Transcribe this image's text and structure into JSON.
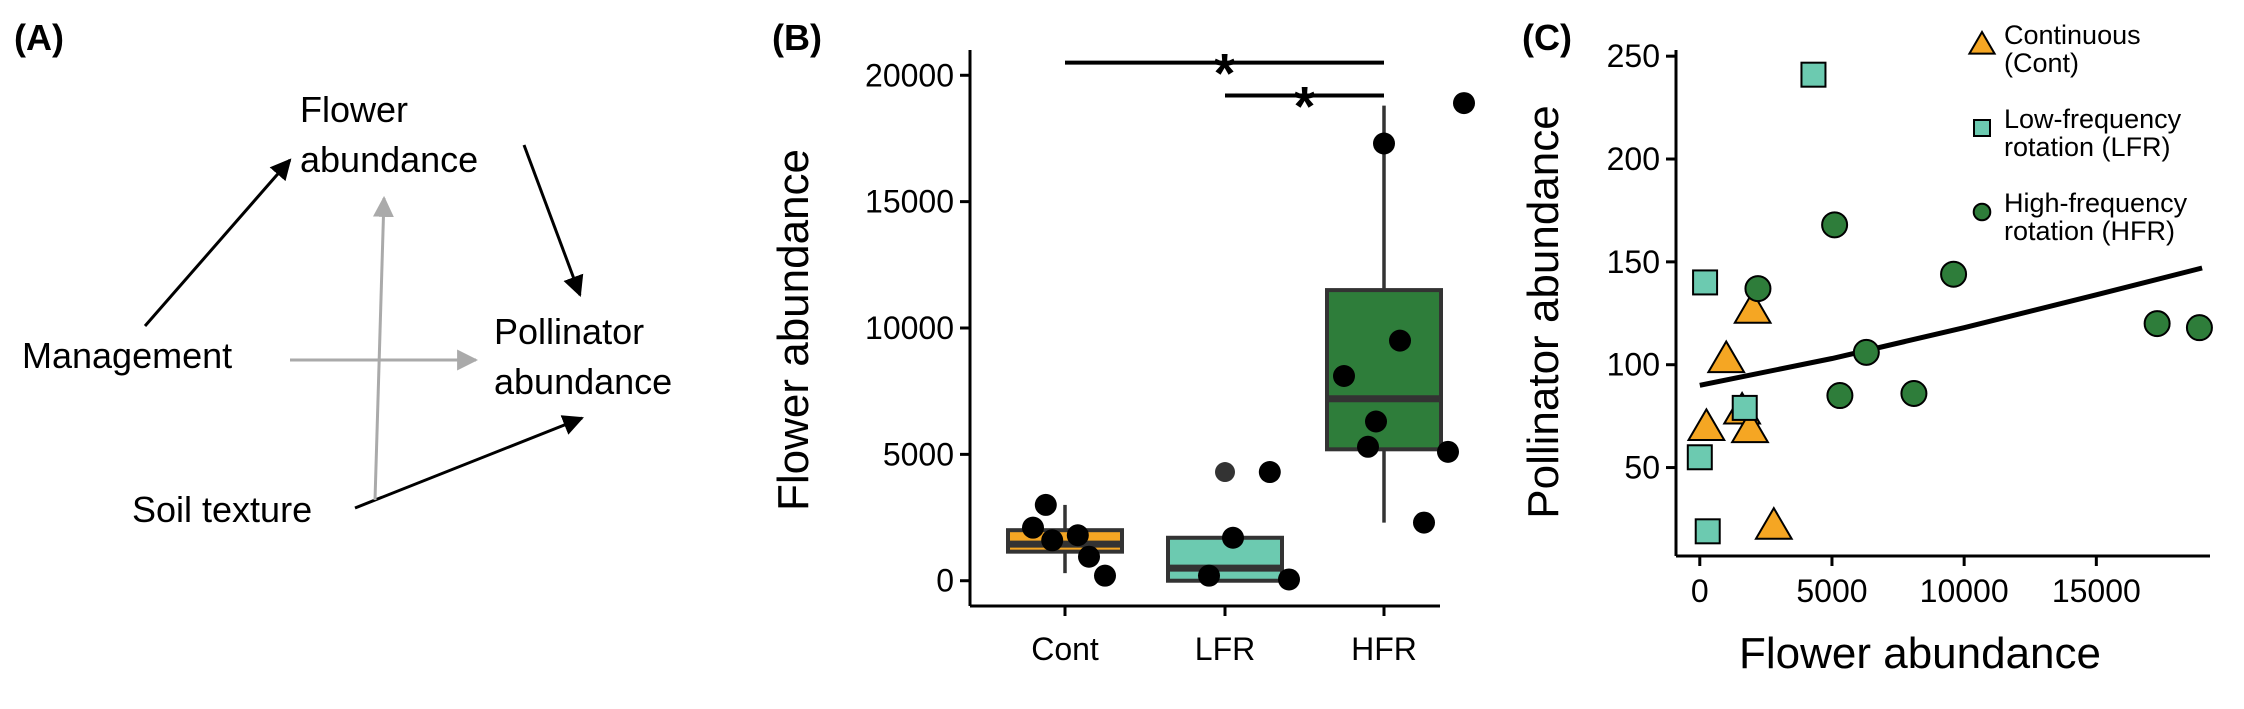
{
  "panels": {
    "a": {
      "letter": "(A)"
    },
    "b": {
      "letter": "(B)"
    },
    "c": {
      "letter": "(C)"
    }
  },
  "diagram": {
    "nodes": {
      "flower": [
        "Flower",
        "abundance"
      ],
      "management": [
        "Management"
      ],
      "pollinator": [
        "Pollinator",
        "abundance"
      ],
      "soil": [
        "Soil texture"
      ]
    },
    "edges": [
      {
        "from": "management",
        "to": "flower",
        "color": "#000000"
      },
      {
        "from": "flower",
        "to": "pollinator",
        "color": "#000000"
      },
      {
        "from": "soil",
        "to": "pollinator",
        "color": "#000000"
      },
      {
        "from": "management",
        "to": "pollinator",
        "color": "#aaaaaa"
      },
      {
        "from": "soil",
        "to": "flower",
        "color": "#aaaaaa"
      }
    ]
  },
  "chart_data": [
    {
      "type": "box",
      "ylabel": "Flower abundance",
      "ylim": [
        -1000,
        21000
      ],
      "yticks": [
        0,
        5000,
        10000,
        15000,
        20000
      ],
      "categories": [
        "Cont",
        "LFR",
        "HFR"
      ],
      "colors": [
        "#f5a623",
        "#6ccab0",
        "#2e7d3a"
      ],
      "boxes": [
        {
          "min": 300,
          "q1": 1150,
          "median": 1450,
          "q3": 2000,
          "max": 3000,
          "outliers": []
        },
        {
          "min": 0,
          "q1": 0,
          "median": 500,
          "q3": 1700,
          "max": 1700,
          "outliers": [
            4300
          ]
        },
        {
          "min": 2300,
          "q1": 5200,
          "median": 7200,
          "q3": 11500,
          "max": 18800,
          "outliers": []
        }
      ],
      "points": [
        [
          [
            -0.2,
            2100
          ],
          [
            -0.12,
            3000
          ],
          [
            -0.08,
            1600
          ],
          [
            0.08,
            1800
          ],
          [
            0.15,
            950
          ],
          [
            0.25,
            200
          ]
        ],
        [
          [
            -0.1,
            200
          ],
          [
            0.05,
            1700
          ],
          [
            0.28,
            4300
          ],
          [
            0.4,
            50
          ]
        ],
        [
          [
            -0.25,
            8100
          ],
          [
            -0.1,
            5300
          ],
          [
            -0.05,
            6300
          ],
          [
            0.0,
            17300
          ],
          [
            0.1,
            9500
          ],
          [
            0.25,
            2300
          ],
          [
            0.4,
            5100
          ],
          [
            0.5,
            18900
          ]
        ]
      ],
      "significance": [
        {
          "from": 0,
          "to": 2,
          "y": 20500,
          "label": "*"
        },
        {
          "from": 1,
          "to": 2,
          "y": 19200,
          "label": "*"
        }
      ]
    },
    {
      "type": "scatter",
      "xlabel": "Flower abundance",
      "ylabel": "Pollinator abundance",
      "xlim": [
        -900,
        19300
      ],
      "ylim": [
        7,
        253
      ],
      "xticks": [
        0,
        5000,
        10000,
        15000
      ],
      "yticks": [
        50,
        100,
        150,
        200,
        250
      ],
      "series": [
        {
          "name": "Continuous (Cont)",
          "legend_lines": [
            "Continuous",
            "(Cont)"
          ],
          "marker": "triangle",
          "color": "#f5a623",
          "points": [
            [
              250,
              70
            ],
            [
              1000,
              103
            ],
            [
              1600,
              78
            ],
            [
              1900,
              69
            ],
            [
              2000,
              127
            ],
            [
              2800,
              22
            ]
          ]
        },
        {
          "name": "Low-frequency rotation (LFR)",
          "legend_lines": [
            "Low-frequency",
            "rotation (LFR)"
          ],
          "marker": "square",
          "color": "#6ccab0",
          "points": [
            [
              0,
              55
            ],
            [
              200,
              140
            ],
            [
              300,
              19
            ],
            [
              1700,
              79
            ],
            [
              4300,
              241
            ]
          ]
        },
        {
          "name": "High-frequency rotation (HFR)",
          "legend_lines": [
            "High-frequency",
            "rotation (HFR)"
          ],
          "marker": "circle",
          "color": "#2e7d3a",
          "points": [
            [
              2200,
              137
            ],
            [
              5100,
              168
            ],
            [
              5300,
              85
            ],
            [
              6300,
              106
            ],
            [
              8100,
              86
            ],
            [
              9600,
              144
            ],
            [
              17300,
              120
            ],
            [
              18900,
              118
            ]
          ]
        }
      ],
      "trend": {
        "type": "curve",
        "points": [
          [
            0,
            90
          ],
          [
            5000,
            103
          ],
          [
            10000,
            118
          ],
          [
            15000,
            134
          ],
          [
            19000,
            147
          ]
        ]
      },
      "legend": "top-right"
    }
  ]
}
